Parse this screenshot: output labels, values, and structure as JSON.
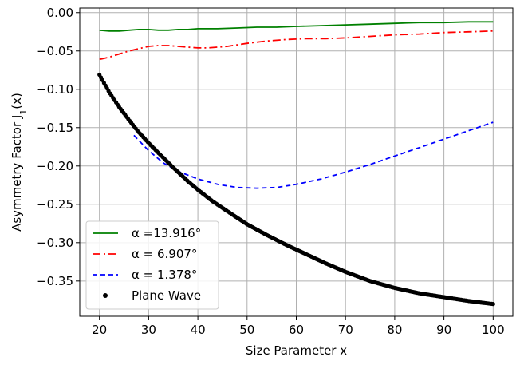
{
  "chart_data": {
    "type": "line",
    "title": "",
    "xlabel": "Size Parameter x",
    "ylabel": "Asymmetry Factor J",
    "ylabel_sub": "1",
    "ylabel_arg": "(x)",
    "xlim": [
      16,
      104
    ],
    "ylim": [
      -0.396,
      0.006
    ],
    "x_ticks": [
      20,
      30,
      40,
      50,
      60,
      70,
      80,
      90,
      100
    ],
    "x_tick_labels": [
      "20",
      "30",
      "40",
      "50",
      "60",
      "70",
      "80",
      "90",
      "100"
    ],
    "y_ticks": [
      0.0,
      -0.05,
      -0.1,
      -0.15,
      -0.2,
      -0.25,
      -0.3,
      -0.35
    ],
    "y_tick_labels": [
      "0.00",
      "−0.05",
      "−0.10",
      "−0.15",
      "−0.20",
      "−0.25",
      "−0.30",
      "−0.35"
    ],
    "grid": true,
    "legend_position": "lower-left",
    "series": [
      {
        "name": "α =13.916°",
        "color": "#008000",
        "style": "solid",
        "x": [
          20,
          22,
          24,
          26,
          28,
          30,
          32,
          34,
          36,
          38,
          40,
          44,
          48,
          52,
          56,
          60,
          65,
          70,
          75,
          80,
          85,
          90,
          95,
          100
        ],
        "y": [
          -0.023,
          -0.024,
          -0.024,
          -0.023,
          -0.022,
          -0.022,
          -0.023,
          -0.023,
          -0.022,
          -0.022,
          -0.021,
          -0.021,
          -0.02,
          -0.019,
          -0.019,
          -0.018,
          -0.017,
          -0.016,
          -0.015,
          -0.014,
          -0.013,
          -0.013,
          -0.012,
          -0.012
        ]
      },
      {
        "name": "α = 6.907°",
        "color": "#ff0000",
        "style": "dashdot",
        "x": [
          20,
          22,
          24,
          26,
          28,
          30,
          32,
          34,
          36,
          38,
          40,
          42,
          44,
          46,
          48,
          50,
          54,
          58,
          62,
          66,
          70,
          75,
          80,
          85,
          90,
          95,
          100
        ],
        "y": [
          -0.061,
          -0.058,
          -0.054,
          -0.05,
          -0.047,
          -0.044,
          -0.043,
          -0.043,
          -0.044,
          -0.045,
          -0.046,
          -0.046,
          -0.045,
          -0.044,
          -0.042,
          -0.04,
          -0.037,
          -0.035,
          -0.034,
          -0.034,
          -0.033,
          -0.031,
          -0.029,
          -0.028,
          -0.026,
          -0.025,
          -0.024
        ]
      },
      {
        "name": "α = 1.378°",
        "color": "#0000ff",
        "style": "dashed",
        "x": [
          27,
          30,
          33,
          36,
          40,
          44,
          48,
          52,
          56,
          60,
          65,
          70,
          75,
          80,
          85,
          90,
          95,
          100
        ],
        "y": [
          -0.16,
          -0.18,
          -0.196,
          -0.207,
          -0.217,
          -0.224,
          -0.228,
          -0.229,
          -0.228,
          -0.224,
          -0.217,
          -0.208,
          -0.198,
          -0.187,
          -0.176,
          -0.165,
          -0.154,
          -0.143
        ]
      },
      {
        "name": "Plane Wave",
        "color": "#000000",
        "style": "dots",
        "x": [
          20,
          22,
          24,
          26,
          28,
          30,
          32,
          35,
          38,
          40,
          43,
          46,
          50,
          54,
          58,
          62,
          66,
          70,
          75,
          80,
          85,
          90,
          95,
          100
        ],
        "y": [
          -0.081,
          -0.104,
          -0.123,
          -0.14,
          -0.156,
          -0.17,
          -0.183,
          -0.202,
          -0.22,
          -0.231,
          -0.246,
          -0.259,
          -0.276,
          -0.29,
          -0.303,
          -0.315,
          -0.327,
          -0.338,
          -0.35,
          -0.359,
          -0.366,
          -0.371,
          -0.376,
          -0.38
        ]
      }
    ]
  }
}
